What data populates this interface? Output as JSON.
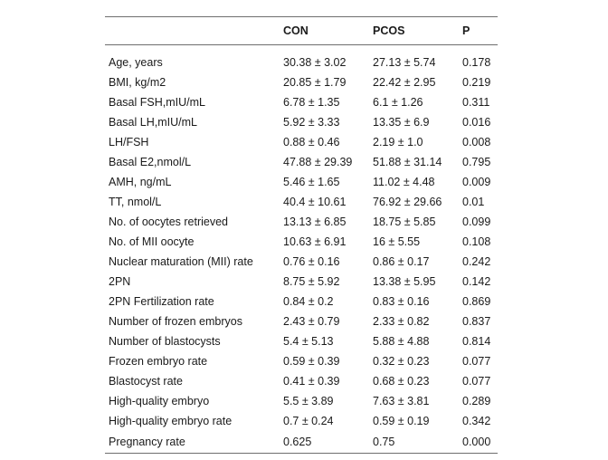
{
  "table": {
    "headers": [
      "",
      "CON",
      "PCOS",
      "P"
    ],
    "rows": [
      [
        "Age, years",
        "30.38 ± 3.02",
        "27.13 ± 5.74",
        "0.178"
      ],
      [
        "BMI, kg/m2",
        "20.85 ± 1.79",
        "22.42 ± 2.95",
        "0.219"
      ],
      [
        "Basal FSH,mIU/mL",
        "6.78 ± 1.35",
        "6.1 ± 1.26",
        "0.311"
      ],
      [
        "Basal LH,mIU/mL",
        "5.92 ± 3.33",
        "13.35 ± 6.9",
        "0.016"
      ],
      [
        "LH/FSH",
        "0.88 ± 0.46",
        "2.19 ± 1.0",
        "0.008"
      ],
      [
        "Basal E2,nmol/L",
        "47.88 ± 29.39",
        "51.88 ± 31.14",
        "0.795"
      ],
      [
        "AMH, ng/mL",
        "5.46 ± 1.65",
        "11.02 ± 4.48",
        "0.009"
      ],
      [
        "TT, nmol/L",
        "40.4 ± 10.61",
        "76.92 ± 29.66",
        "0.01"
      ],
      [
        "No. of oocytes retrieved",
        "13.13 ± 6.85",
        "18.75 ± 5.85",
        "0.099"
      ],
      [
        "No. of MII oocyte",
        "10.63 ± 6.91",
        "16 ± 5.55",
        "0.108"
      ],
      [
        "Nuclear maturation (MII) rate",
        "0.76 ± 0.16",
        "0.86 ± 0.17",
        "0.242"
      ],
      [
        "2PN",
        "8.75 ± 5.92",
        "13.38 ± 5.95",
        "0.142"
      ],
      [
        "2PN Fertilization rate",
        "0.84 ± 0.2",
        "0.83 ± 0.16",
        "0.869"
      ],
      [
        "Number of frozen embryos",
        "2.43 ± 0.79",
        "2.33 ± 0.82",
        "0.837"
      ],
      [
        "Number of blastocysts",
        "5.4 ± 5.13",
        "5.88 ± 4.88",
        "0.814"
      ],
      [
        "Frozen embryo rate",
        "0.59 ± 0.39",
        "0.32 ± 0.23",
        "0.077"
      ],
      [
        "Blastocyst rate",
        "0.41 ± 0.39",
        "0.68 ± 0.23",
        "0.077"
      ],
      [
        "High-quality embryo",
        "5.5 ± 3.89",
        "7.63 ± 3.81",
        "0.289"
      ],
      [
        "High-quality embryo rate",
        "0.7 ± 0.24",
        "0.59 ± 0.19",
        "0.342"
      ],
      [
        "Pregnancy rate",
        "0.625",
        "0.75",
        "0.000"
      ]
    ]
  }
}
